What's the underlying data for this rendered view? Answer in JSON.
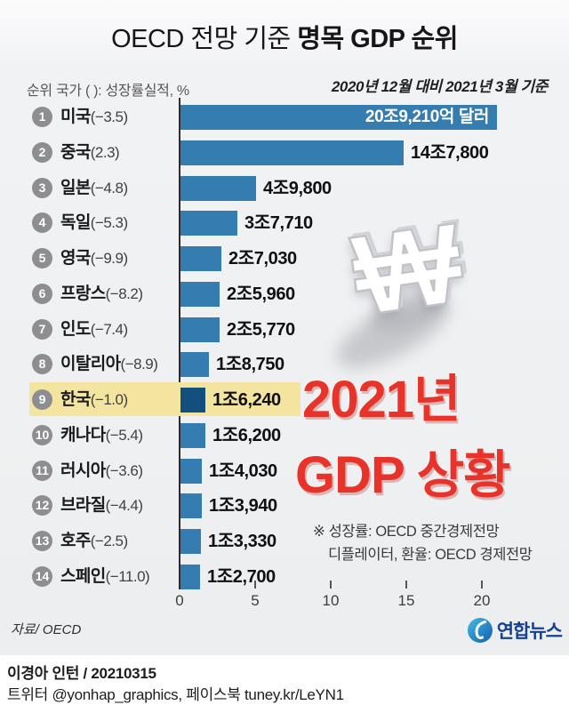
{
  "title": {
    "light": "OECD 전망 기준 ",
    "strong": "명목 GDP 순위"
  },
  "legend_note": "순위 국가 (  ): 성장률실적, %",
  "basis_note": "2020년 12월 대비 2021년 3월 기준",
  "chart_data": {
    "type": "bar",
    "orientation": "horizontal",
    "title": "OECD 전망 기준 명목 GDP 순위",
    "unit": "조 달러 (trillion USD)",
    "xlim": [
      0,
      22
    ],
    "x_ticks": [
      0,
      5,
      10,
      15,
      20
    ],
    "grid": false,
    "colors": {
      "bar": "#357cb0",
      "korea_bar": "#134f7d",
      "highlight_band": "#f3e4a0",
      "rank_badge": "#8d8d92"
    },
    "rows": [
      {
        "rank": 1,
        "country": "미국",
        "growth": "(−3.5)",
        "value": 20.921,
        "value_label": "20조9,210억 달러",
        "label_inside": true,
        "highlight": false
      },
      {
        "rank": 2,
        "country": "중국",
        "growth": "(2.3)",
        "value": 14.78,
        "value_label": "14조7,800",
        "label_inside": false,
        "highlight": false
      },
      {
        "rank": 3,
        "country": "일본",
        "growth": "(−4.8)",
        "value": 4.98,
        "value_label": "4조9,800",
        "label_inside": false,
        "highlight": false
      },
      {
        "rank": 4,
        "country": "독일",
        "growth": "(−5.3)",
        "value": 3.771,
        "value_label": "3조7,710",
        "label_inside": false,
        "highlight": false
      },
      {
        "rank": 5,
        "country": "영국",
        "growth": "(−9.9)",
        "value": 2.703,
        "value_label": "2조7,030",
        "label_inside": false,
        "highlight": false
      },
      {
        "rank": 6,
        "country": "프랑스",
        "growth": "(−8.2)",
        "value": 2.596,
        "value_label": "2조5,960",
        "label_inside": false,
        "highlight": false
      },
      {
        "rank": 7,
        "country": "인도",
        "growth": "(−7.4)",
        "value": 2.577,
        "value_label": "2조5,770",
        "label_inside": false,
        "highlight": false
      },
      {
        "rank": 8,
        "country": "이탈리아",
        "growth": "(−8.9)",
        "value": 1.875,
        "value_label": "1조8,750",
        "label_inside": false,
        "highlight": false
      },
      {
        "rank": 9,
        "country": "한국",
        "growth": "(−1.0)",
        "value": 1.624,
        "value_label": "1조6,240",
        "label_inside": false,
        "highlight": true
      },
      {
        "rank": 10,
        "country": "캐나다",
        "growth": "(−5.4)",
        "value": 1.62,
        "value_label": "1조6,200",
        "label_inside": false,
        "highlight": false
      },
      {
        "rank": 11,
        "country": "러시아",
        "growth": "(−3.6)",
        "value": 1.403,
        "value_label": "1조4,030",
        "label_inside": false,
        "highlight": false
      },
      {
        "rank": 12,
        "country": "브라질",
        "growth": "(−4.4)",
        "value": 1.394,
        "value_label": "1조3,940",
        "label_inside": false,
        "highlight": false
      },
      {
        "rank": 13,
        "country": "호주",
        "growth": "(−2.5)",
        "value": 1.333,
        "value_label": "1조3,330",
        "label_inside": false,
        "highlight": false
      },
      {
        "rank": 14,
        "country": "스페인",
        "growth": "(−11.0)",
        "value": 1.27,
        "value_label": "1조2,700",
        "label_inside": false,
        "highlight": false
      }
    ]
  },
  "watermark": {
    "symbol": "₩",
    "line1": "2021년",
    "line2": "GDP 상황",
    "color": "#e8332b"
  },
  "note": {
    "line1": "※ 성장률: OECD 중간경제전망",
    "line2": "디플레이터, 환율: OECD 경제전망"
  },
  "source": "자료/ OECD",
  "logo": {
    "text": "연합뉴스"
  },
  "credits": {
    "line1": "이경아 인턴 /  20210315",
    "line2": "트위터 @yonhap_graphics, 페이스북 tuney.kr/LeYN1"
  }
}
